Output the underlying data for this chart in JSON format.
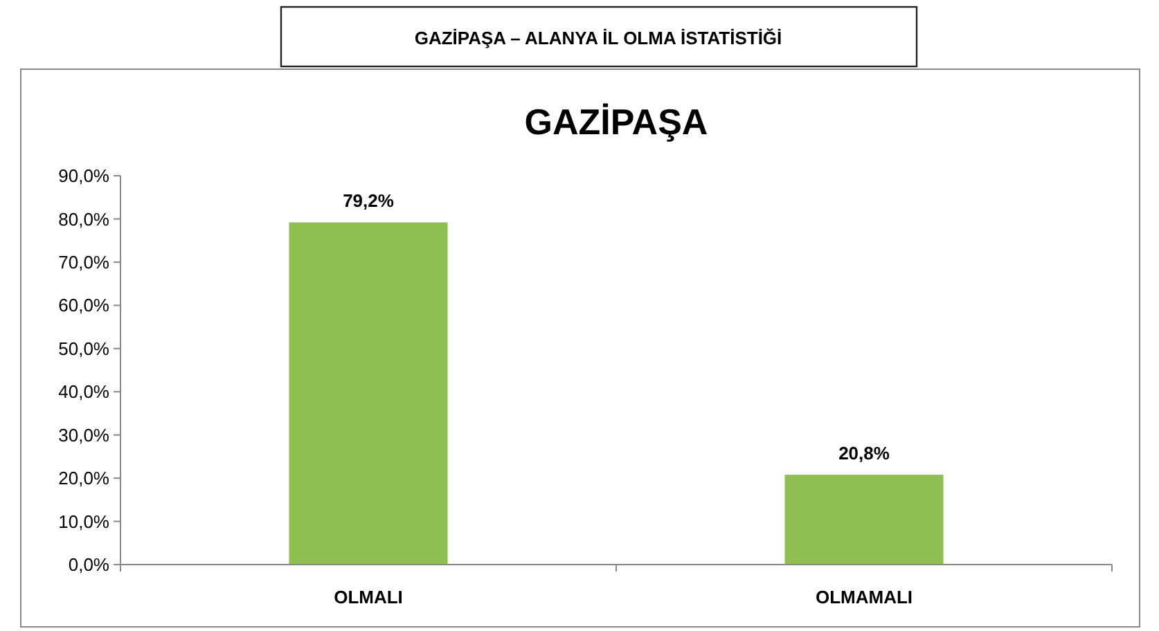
{
  "chart_data": {
    "type": "bar",
    "title": "GAZİPAŞA – ALANYA İL OLMA İSTATİSTİĞİ",
    "subtitle": "GAZİPAŞA",
    "categories": [
      "OLMALI",
      "OLMAMALI"
    ],
    "values": [
      79.2,
      20.8
    ],
    "color": "#8fbf4f",
    "value_labels": [
      "79,2%",
      "20,8%"
    ],
    "ylim": [
      0,
      90
    ],
    "yticks": [
      {
        "value": 0,
        "label": "0,0%"
      },
      {
        "value": 10,
        "label": "10,0%"
      },
      {
        "value": 20,
        "label": "20,0%"
      },
      {
        "value": 30,
        "label": "30,0%"
      },
      {
        "value": 40,
        "label": "40,0%"
      },
      {
        "value": 50,
        "label": "50,0%"
      },
      {
        "value": 60,
        "label": "60,0%"
      },
      {
        "value": 70,
        "label": "70,0%"
      },
      {
        "value": 80,
        "label": "80,0%"
      },
      {
        "value": 90,
        "label": "90,0%"
      }
    ],
    "grid": false
  }
}
